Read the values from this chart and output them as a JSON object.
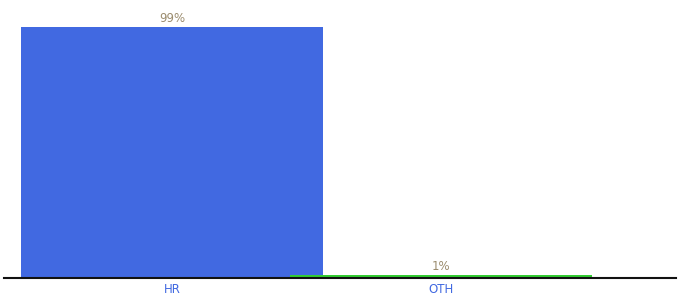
{
  "categories": [
    "HR",
    "OTH"
  ],
  "values": [
    99,
    1
  ],
  "bar_colors": [
    "#4169e1",
    "#32cd32"
  ],
  "bar_labels": [
    "99%",
    "1%"
  ],
  "label_color": "#9b8c6e",
  "ylim": [
    0,
    108
  ],
  "background_color": "#ffffff",
  "axis_line_color": "#111111",
  "tick_label_color": "#4169e1",
  "label_fontsize": 8.5,
  "tick_fontsize": 8.5,
  "bar_width": 0.45,
  "x_positions": [
    0.25,
    0.65
  ],
  "x_lim": [
    0.0,
    1.0
  ]
}
